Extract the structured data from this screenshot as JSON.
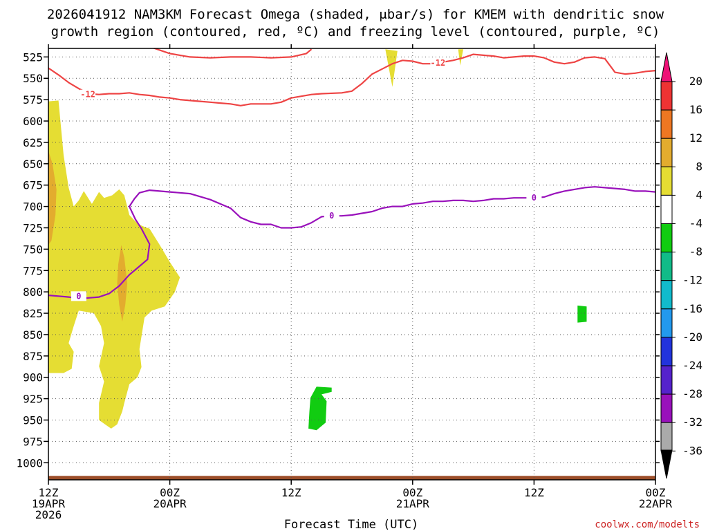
{
  "chart_data": {
    "type": "heatmap",
    "title_line1": "2026041912 NAM3KM Forecast Omega (shaded, μbar/s) for KMEM with dendritic snow",
    "title_line2": "growth region (contoured, red, ºC) and freezing level (contoured, purple, ºC)",
    "xlabel": "Forecast Time (UTC)",
    "credit": "coolwx.com/modelts",
    "x_range_hours": [
      0,
      60
    ],
    "y_range_hpa": [
      515,
      1020
    ],
    "x_ticks": [
      {
        "hour": 0,
        "line1": "12Z",
        "line2": "19APR",
        "line3": "2026"
      },
      {
        "hour": 12,
        "line1": "00Z",
        "line2": "20APR",
        "line3": ""
      },
      {
        "hour": 24,
        "line1": "12Z",
        "line2": "",
        "line3": ""
      },
      {
        "hour": 36,
        "line1": "00Z",
        "line2": "21APR",
        "line3": ""
      },
      {
        "hour": 48,
        "line1": "12Z",
        "line2": "",
        "line3": ""
      },
      {
        "hour": 60,
        "line1": "00Z",
        "line2": "22APR",
        "line3": ""
      }
    ],
    "y_ticks": [
      525,
      550,
      575,
      600,
      625,
      650,
      675,
      700,
      725,
      750,
      775,
      800,
      825,
      850,
      875,
      900,
      925,
      950,
      975,
      1000
    ],
    "colorbar": {
      "labels": [
        "20",
        "16",
        "12",
        "8",
        "4",
        "-4",
        "-8",
        "-12",
        "-16",
        "-20",
        "-24",
        "-28",
        "-32",
        "-36"
      ],
      "colors": [
        "#ee1177",
        "#ee3333",
        "#ee7722",
        "#e3ac2e",
        "#e5dd33",
        "#ffffff",
        "#11cc11",
        "#11bb88",
        "#11bbcc",
        "#2299ee",
        "#2233dd",
        "#5522cc",
        "#9911bb",
        "#aaaaaa",
        "#000000"
      ]
    },
    "series": [
      {
        "name": "-12 C isotherm (upper)",
        "color": "#ee4444",
        "label": "-12",
        "points": [
          [
            10,
            513
          ],
          [
            12,
            521
          ],
          [
            13,
            523
          ],
          [
            14,
            525
          ],
          [
            16,
            526
          ],
          [
            18,
            525
          ],
          [
            20,
            525
          ],
          [
            22,
            526
          ],
          [
            24,
            525
          ],
          [
            25.5,
            521
          ],
          [
            26,
            516
          ]
        ]
      },
      {
        "name": "-12 C isotherm",
        "color": "#ee4444",
        "label": "-12",
        "label_at": [
          3.9,
          569
        ],
        "points": [
          [
            0,
            538
          ],
          [
            1,
            546
          ],
          [
            2,
            555
          ],
          [
            3,
            562
          ],
          [
            4,
            568
          ],
          [
            5,
            569
          ],
          [
            6,
            568
          ],
          [
            7,
            568
          ],
          [
            8,
            567
          ],
          [
            9,
            569
          ],
          [
            10,
            570
          ],
          [
            11,
            572
          ],
          [
            12,
            573
          ],
          [
            13,
            575
          ],
          [
            14,
            576
          ],
          [
            15,
            577
          ],
          [
            16,
            578
          ],
          [
            17,
            579
          ],
          [
            18,
            580
          ],
          [
            19,
            582
          ],
          [
            20,
            580
          ],
          [
            21,
            580
          ],
          [
            22,
            580
          ],
          [
            23,
            578
          ],
          [
            24,
            573
          ],
          [
            25,
            571
          ],
          [
            26,
            569
          ],
          [
            27,
            568
          ],
          [
            29,
            567
          ],
          [
            30,
            565
          ],
          [
            31,
            556
          ],
          [
            32,
            545
          ],
          [
            33,
            539
          ],
          [
            34,
            533
          ],
          [
            35,
            529
          ],
          [
            36,
            530
          ],
          [
            37,
            533
          ],
          [
            38,
            533
          ],
          [
            39,
            531
          ],
          [
            40,
            529
          ],
          [
            41,
            526
          ],
          [
            42,
            522
          ],
          [
            43,
            523
          ],
          [
            44,
            524
          ],
          [
            45,
            526
          ],
          [
            46,
            525
          ],
          [
            47,
            524
          ],
          [
            48,
            524
          ],
          [
            49,
            526
          ],
          [
            50,
            531
          ],
          [
            51,
            533
          ],
          [
            52,
            531
          ],
          [
            53,
            526
          ],
          [
            54,
            525
          ],
          [
            55,
            527
          ],
          [
            56,
            543
          ],
          [
            57,
            545
          ],
          [
            58,
            544
          ],
          [
            59,
            542
          ],
          [
            60,
            541
          ]
        ]
      },
      {
        "name": "0 C freezing level",
        "color": "#9911bb",
        "label": "0",
        "label_at": [
          3,
          805
        ],
        "points": [
          [
            0,
            804
          ],
          [
            1,
            805
          ],
          [
            2,
            806
          ],
          [
            3,
            808
          ],
          [
            4,
            807
          ],
          [
            5,
            806
          ],
          [
            6,
            802
          ],
          [
            7,
            793
          ],
          [
            8,
            780
          ],
          [
            9,
            770
          ],
          [
            9.8,
            762
          ],
          [
            10,
            744
          ],
          [
            9.2,
            726
          ],
          [
            8.6,
            715
          ],
          [
            8,
            700
          ],
          [
            8.5,
            691
          ],
          [
            9,
            684
          ],
          [
            10,
            681
          ],
          [
            12,
            683
          ],
          [
            14,
            685
          ],
          [
            16,
            692
          ],
          [
            18,
            702
          ],
          [
            19,
            713
          ],
          [
            20,
            718
          ],
          [
            21,
            721
          ],
          [
            22,
            721
          ],
          [
            23,
            725
          ],
          [
            24,
            725
          ],
          [
            25,
            724
          ],
          [
            26,
            719
          ],
          [
            27,
            712
          ],
          [
            28,
            711
          ],
          [
            29,
            711
          ],
          [
            30,
            710
          ],
          [
            31,
            708
          ],
          [
            32,
            706
          ],
          [
            33,
            702
          ],
          [
            34,
            700
          ],
          [
            35,
            700
          ],
          [
            36,
            697
          ],
          [
            37,
            696
          ],
          [
            38,
            694
          ],
          [
            39,
            694
          ],
          [
            40,
            693
          ],
          [
            41,
            693
          ],
          [
            42,
            694
          ],
          [
            43,
            693
          ],
          [
            44,
            691
          ],
          [
            45,
            691
          ],
          [
            46,
            690
          ],
          [
            47,
            690
          ],
          [
            48,
            690
          ],
          [
            49,
            689
          ],
          [
            50,
            685
          ],
          [
            51,
            682
          ],
          [
            52,
            680
          ],
          [
            53,
            678
          ],
          [
            54,
            677
          ],
          [
            55,
            678
          ],
          [
            56,
            679
          ],
          [
            57,
            680
          ],
          [
            58,
            682
          ],
          [
            59,
            682
          ],
          [
            60,
            683
          ]
        ]
      }
    ],
    "shaded_regions": [
      {
        "value": "4 to 8",
        "color": "#e5dd33",
        "points": [
          [
            0,
            577
          ],
          [
            1,
            576
          ],
          [
            1.5,
            640
          ],
          [
            2,
            678
          ],
          [
            2.5,
            700
          ],
          [
            3,
            693
          ],
          [
            3.5,
            682
          ],
          [
            4.3,
            697
          ],
          [
            5,
            683
          ],
          [
            5.5,
            690
          ],
          [
            6.3,
            687
          ],
          [
            7,
            680
          ],
          [
            7.5,
            687
          ],
          [
            8,
            710
          ],
          [
            8.8,
            720
          ],
          [
            9.3,
            723
          ],
          [
            10,
            726
          ],
          [
            11,
            745
          ],
          [
            12,
            765
          ],
          [
            13,
            783
          ],
          [
            12.5,
            800
          ],
          [
            11.5,
            817
          ],
          [
            10.2,
            822
          ],
          [
            9.5,
            830
          ],
          [
            9,
            867
          ],
          [
            9.2,
            888
          ],
          [
            8.8,
            900
          ],
          [
            8,
            908
          ],
          [
            7.5,
            930
          ],
          [
            7.3,
            940
          ],
          [
            6.8,
            955
          ],
          [
            6.2,
            960
          ],
          [
            5.6,
            955
          ],
          [
            5,
            950
          ],
          [
            5,
            930
          ],
          [
            5.5,
            905
          ],
          [
            5,
            887
          ],
          [
            5.5,
            860
          ],
          [
            5.2,
            840
          ],
          [
            4.5,
            825
          ],
          [
            3,
            822
          ],
          [
            2.5,
            840
          ],
          [
            2,
            860
          ],
          [
            2.5,
            870
          ],
          [
            2.3,
            890
          ],
          [
            1.5,
            895
          ],
          [
            0,
            895
          ],
          [
            0,
            577
          ]
        ]
      },
      {
        "value": "4 to 8",
        "color": "#e5dd33",
        "points": [
          [
            33.3,
            516
          ],
          [
            33.6,
            535
          ],
          [
            34,
            560
          ],
          [
            34.3,
            535
          ],
          [
            34.5,
            518
          ]
        ]
      },
      {
        "value": "4 to 8",
        "color": "#e5dd33",
        "points": [
          [
            40.5,
            516
          ],
          [
            40.7,
            535
          ],
          [
            41,
            516
          ]
        ]
      },
      {
        "value": "8 to 12",
        "color": "#e3ac2e",
        "points": [
          [
            0,
            635
          ],
          [
            0.4,
            650
          ],
          [
            0.8,
            680
          ],
          [
            0.7,
            710
          ],
          [
            0.3,
            740
          ],
          [
            0,
            745
          ]
        ]
      },
      {
        "value": "8 to 12",
        "color": "#e3ac2e",
        "points": [
          [
            6.9,
            768
          ],
          [
            7.2,
            745
          ],
          [
            7.5,
            760
          ],
          [
            7.8,
            790
          ],
          [
            7.6,
            815
          ],
          [
            7.3,
            835
          ],
          [
            7,
            815
          ],
          [
            6.8,
            790
          ]
        ]
      },
      {
        "value": "-8 to -4",
        "color": "#11cc11",
        "points": [
          [
            25.9,
            924
          ],
          [
            26.5,
            911
          ],
          [
            28,
            912
          ],
          [
            28,
            917
          ],
          [
            27,
            920
          ],
          [
            27.5,
            928
          ],
          [
            27.4,
            953
          ],
          [
            26.5,
            962
          ],
          [
            25.7,
            960
          ],
          [
            25.8,
            940
          ]
        ]
      },
      {
        "value": "-8 to -4",
        "color": "#11cc11",
        "points": [
          [
            52.3,
            816
          ],
          [
            53.2,
            817
          ],
          [
            53.2,
            835
          ],
          [
            52.3,
            836
          ]
        ]
      }
    ],
    "terrain": {
      "color": "#9c4e29",
      "surface_hpa": 1017
    }
  }
}
